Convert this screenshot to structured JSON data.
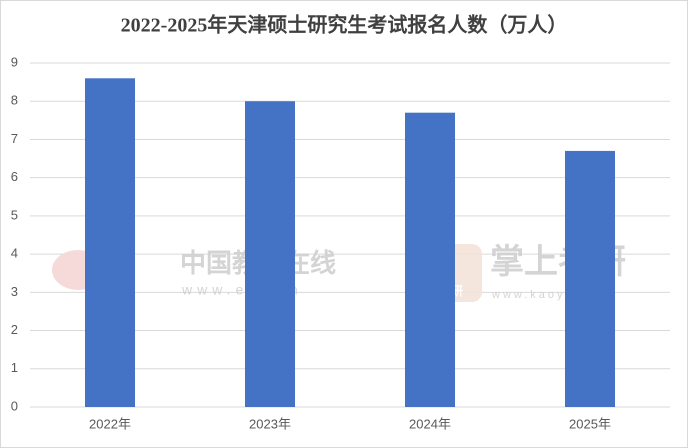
{
  "chart_data": {
    "type": "bar",
    "title": "2022-2025年天津硕士研究生考试报名人数（万人）",
    "categories": [
      "2022年",
      "2023年",
      "2024年",
      "2025年"
    ],
    "values": [
      8.6,
      8.0,
      7.7,
      6.7
    ],
    "color": "#4472c4",
    "ylim": [
      0,
      9
    ],
    "yticks": [
      0,
      1,
      2,
      3,
      4,
      5,
      6,
      7,
      8,
      9
    ],
    "grid": true
  },
  "watermarks": {
    "eol_name": "中国教育在线",
    "eol_url": "www.eol.cn",
    "kaoyan_name": "掌上考研",
    "kaoyan_url": "www.kaoyan.cn",
    "kaoyan_icon": "考研"
  }
}
